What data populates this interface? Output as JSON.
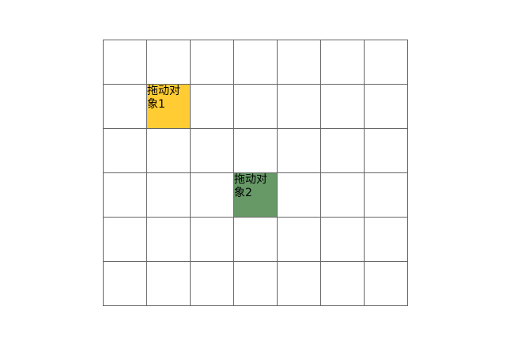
{
  "grid": {
    "rows": 6,
    "columns": 7
  },
  "drag_objects": [
    {
      "label": "拖动对象1",
      "row": 1,
      "column": 1,
      "color": "#FFCC33"
    },
    {
      "label": "拖动对象2",
      "row": 3,
      "column": 3,
      "color": "#669966"
    }
  ]
}
